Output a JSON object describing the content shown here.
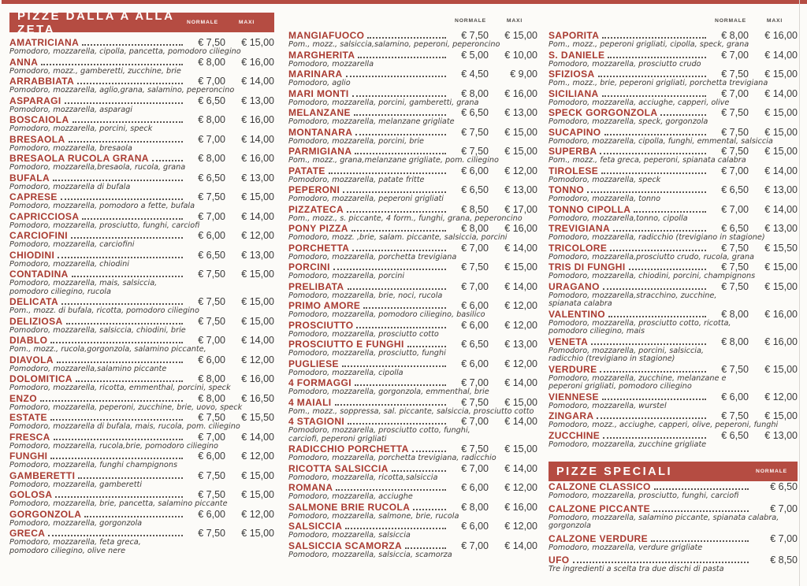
{
  "colors": {
    "banner_red": "#b54c42",
    "name_red": "#a83a30"
  },
  "price_headers": {
    "normale": "NORMALE",
    "maxi": "MAXI"
  },
  "sections": {
    "az": {
      "title": "PIZZE DALLA A ALLA ZETA"
    },
    "speciali": {
      "title": "PIZZE SPECIALI",
      "items": [
        {
          "name": "CALZONE CLASSICO",
          "desc": "Pomodoro, mozzarella, prosciutto, funghi, carciofi",
          "normale": "€ 6,50"
        },
        {
          "name": "CALZONE PICCANTE",
          "desc": "Pomodoro, mozzarella, salamino piccante, spianata calabra, gorgonzola",
          "normale": "€ 7,00"
        },
        {
          "name": "CALZONE VERDURE",
          "desc": "Pomodoro, mozzarella, verdure grigliate",
          "normale": "€ 7,00"
        },
        {
          "name": "UFO",
          "desc": "Tre ingredienti a scelta tra due dischi di pasta",
          "normale": "€ 8,50"
        }
      ]
    }
  },
  "columns": [
    [
      {
        "name": "AMATRICIANA",
        "desc": "Pomodoro, mozzarella, cipolla, pancetta, pomodoro ciliegino",
        "normale": "€ 7,50",
        "maxi": "€ 15,00"
      },
      {
        "name": "ANNA",
        "desc": "Pomodoro, mozz., gamberetti, zucchine, brie",
        "normale": "€ 8,00",
        "maxi": "€ 16,00"
      },
      {
        "name": "ARRABBIATA",
        "desc": "Pomodoro, mozzarella, aglio,grana, salamino, peperoncino",
        "normale": "€ 7,00",
        "maxi": "€ 14,00"
      },
      {
        "name": "ASPARAGI",
        "desc": "Pomodoro, mozzarella, asparagi",
        "normale": "€ 6,50",
        "maxi": "€ 13,00"
      },
      {
        "name": "BOSCAIOLA",
        "desc": "Pomodoro, mozzarella, porcini, speck",
        "normale": "€ 8,00",
        "maxi": "€ 16,00"
      },
      {
        "name": "BRESAOLA",
        "desc": "Pomodoro, mozzarella, bresaola",
        "normale": "€ 7,00",
        "maxi": "€ 14,00"
      },
      {
        "name": "BRESAOLA RUCOLA GRANA",
        "desc": "Pomodoro, mozzarella,bresaola, rucola, grana",
        "normale": "€ 8,00",
        "maxi": "€ 16,00"
      },
      {
        "name": "BUFALA",
        "desc": "Pomodoro, mozzarella di bufala",
        "normale": "€ 6,50",
        "maxi": "€ 13,00"
      },
      {
        "name": "CAPRESE",
        "desc": "Pomodoro, mozzarella, pomodoro a fette, bufala",
        "normale": "€ 7,50",
        "maxi": "€ 15,00"
      },
      {
        "name": "CAPRICCIOSA",
        "desc": "Pomodoro, mozzarella, prosciutto, funghi, carciofi",
        "normale": "€ 7,00",
        "maxi": "€ 14,00"
      },
      {
        "name": "CARCIOFINI",
        "desc": "Pomodoro, mozzarella, carciofini",
        "normale": "€ 6,00",
        "maxi": "€ 12,00"
      },
      {
        "name": "CHIODINI",
        "desc": "Pomodoro, mozzarella, chiodini",
        "normale": "€ 6,50",
        "maxi": "€ 13,00"
      },
      {
        "name": "CONTADINA",
        "desc": "Pomodoro, mozzarella, mais, salsiccia,\npomodoro ciliegino, rucola",
        "normale": "€ 7,50",
        "maxi": "€ 15,00"
      },
      {
        "name": "DELICATA",
        "desc": "Pom., mozz. di bufala, ricotta, pomodoro ciliegino",
        "normale": "€ 7,50",
        "maxi": "€ 15,00"
      },
      {
        "name": "DELIZIOSA",
        "desc": "Pomodoro, mozzarella, salsiccia, chiodini, brie",
        "normale": "€ 7,50",
        "maxi": "€ 15,00"
      },
      {
        "name": "DIABLO",
        "desc": "Pom., mozz., rucola,gorgonzola, salamino piccante,",
        "normale": "€ 7,00",
        "maxi": "€ 14,00"
      },
      {
        "name": "DIAVOLA",
        "desc": "Pomodoro, mozzarella,salamino piccante",
        "normale": "€ 6,00",
        "maxi": "€ 12,00"
      },
      {
        "name": "DOLOMITICA",
        "desc": "Pomodoro, mozzarella, ricotta, emmenthal, porcini, speck",
        "normale": "€ 8,00",
        "maxi": "€ 16,00"
      },
      {
        "name": "ENZO",
        "desc": "Pomodoro, mozzarella, peperoni, zucchine, brie, uovo, speck",
        "normale": "€ 8,00",
        "maxi": "€ 16,50"
      },
      {
        "name": "ESTATE",
        "desc": "Pomodoro, mozzarella di bufala, mais, rucola, pom. ciliegino",
        "normale": "€ 7,50",
        "maxi": "€ 15,50"
      },
      {
        "name": "FRESCA",
        "desc": "Pomodoro, mozzarella, rucola,brie, pomodoro ciliegino",
        "normale": "€ 7,00",
        "maxi": "€ 14,00"
      },
      {
        "name": "FUNGHI",
        "desc": "Pomodoro, mozzarella, funghi champignons",
        "normale": "€ 6,00",
        "maxi": "€ 12,00"
      },
      {
        "name": "GAMBERETTI",
        "desc": "Pomodoro, mozzarella, gamberetti",
        "normale": "€ 7,50",
        "maxi": "€ 15,00"
      },
      {
        "name": "GOLOSA",
        "desc": "Pomodoro, mozzarella, brie, pancetta, salamino piccante",
        "normale": "€ 7,50",
        "maxi": "€ 15,00"
      },
      {
        "name": "GORGONZOLA",
        "desc": "Pomodoro, mozzarella, gorgonzola",
        "normale": "€ 6,00",
        "maxi": "€ 12,00"
      },
      {
        "name": "GRECA",
        "desc": "Pomodoro, mozzarella, feta greca,\npomodoro ciliegino, olive nere",
        "normale": "€ 7,50",
        "maxi": "€ 15,00"
      }
    ],
    [
      {
        "name": "MANGIAFUOCO",
        "desc": "Pom., mozz., salsiccia,salamino, peperoni, peperoncino",
        "normale": "€ 7,50",
        "maxi": "€ 15,00"
      },
      {
        "name": "MARGHERITA",
        "desc": "Pomodoro, mozzarella",
        "normale": "€ 5,00",
        "maxi": "€ 10,00"
      },
      {
        "name": "MARINARA",
        "desc": "Pomodoro, aglio",
        "normale": "€ 4,50",
        "maxi": "€ 9,00"
      },
      {
        "name": "MARI MONTI",
        "desc": "Pomodoro, mozzarella, porcini, gamberetti, grana",
        "normale": "€ 8,00",
        "maxi": "€ 16,00"
      },
      {
        "name": "MELANZANE",
        "desc": "Pomodoro, mozzarella, melanzane grigliate",
        "normale": "€ 6,50",
        "maxi": "€ 13,00"
      },
      {
        "name": "MONTANARA",
        "desc": "Pomodoro, mozzarella, porcini, brie",
        "normale": "€ 7,50",
        "maxi": "€ 15,00"
      },
      {
        "name": "PARMIGIANA",
        "desc": "Pom., mozz., grana,melanzane grigliate, pom. ciliegino",
        "normale": "€ 7,50",
        "maxi": "€ 15,00"
      },
      {
        "name": "PATATE",
        "desc": "Pomodoro, mozzarella, patate fritte",
        "normale": "€ 6,00",
        "maxi": "€ 12,00"
      },
      {
        "name": "PEPERONI",
        "desc": "Pomodoro, mozzarella, peperoni grigliati",
        "normale": "€ 6,50",
        "maxi": "€ 13,00"
      },
      {
        "name": "PIZZATECA",
        "desc": "Pom., mozz., s. piccante, 4 form., funghi, grana, peperoncino",
        "normale": "€ 8,50",
        "maxi": "€ 17,00"
      },
      {
        "name": "PONY PIZZA",
        "desc": "Pomodoro, mozz. ,brie, salam. piccante, salsiccia, porcini",
        "normale": "€ 8,00",
        "maxi": "€ 16,00"
      },
      {
        "name": "PORCHETTA",
        "desc": "Pomodoro, mozzarella, porchetta trevigiana",
        "normale": "€ 7,00",
        "maxi": "€ 14,00"
      },
      {
        "name": "PORCINI",
        "desc": "Pomodoro, mozzarella, porcini",
        "normale": "€ 7,50",
        "maxi": "€ 15,00"
      },
      {
        "name": "PRELIBATA",
        "desc": "Pomodoro, mozzarella, brie, noci, rucola",
        "normale": "€ 7,00",
        "maxi": "€ 14,00"
      },
      {
        "name": "PRIMO AMORE",
        "desc": "Pomodoro, mozzarella, pomodoro ciliegino, basilico",
        "normale": "€ 6,00",
        "maxi": "€ 12,00"
      },
      {
        "name": "PROSCIUTTO",
        "desc": "Pomodoro, mozzarella, prosciutto cotto",
        "normale": "€ 6,00",
        "maxi": "€ 12,00"
      },
      {
        "name": "PROSCIUTTO E FUNGHI",
        "desc": "Pomodoro, mozzarella, prosciutto, funghi",
        "normale": "€ 6,50",
        "maxi": "€ 13,00"
      },
      {
        "name": "PUGLIESE",
        "desc": "Pomodoro, mozzarella, cipolla",
        "normale": "€ 6,00",
        "maxi": "€ 12,00"
      },
      {
        "name": "4 FORMAGGI",
        "desc": "Pomodoro, mozzarella, gorgonzola, emmenthal, brie",
        "normale": "€ 7,00",
        "maxi": "€ 14,00"
      },
      {
        "name": "4 MAIALI",
        "desc": "Pom., mozz., soppressa, sal. piccante, salsiccia, prosciutto cotto",
        "normale": "€ 7,50",
        "maxi": "€ 15,00"
      },
      {
        "name": "4 STAGIONI",
        "desc": "Pomodoro, mozzarella, prosciutto cotto, funghi,\ncarciofi, peperoni grigliati",
        "normale": "€ 7,00",
        "maxi": "€ 14,00"
      },
      {
        "name": "RADICCHIO PORCHETTA",
        "desc": "Pomodoro, mozzarella, porchetta trevigiana, radicchio",
        "normale": "€ 7,50",
        "maxi": "€ 15,00"
      },
      {
        "name": "RICOTTA SALSICCIA",
        "desc": "Pomodoro, mozzarella, ricotta,salsiccia",
        "normale": "€ 7,00",
        "maxi": "€ 14,00"
      },
      {
        "name": "ROMANA",
        "desc": "Pomodoro, mozzarella, acciughe",
        "normale": "€ 6,00",
        "maxi": "€ 12,00"
      },
      {
        "name": "SALMONE BRIE RUCOLA",
        "desc": "Pomodoro, mozzarella, salmone, brie, rucola",
        "normale": "€ 8,00",
        "maxi": "€ 16,00"
      },
      {
        "name": "SALSICCIA",
        "desc": "Pomodoro, mozzarella, salsiccia",
        "normale": "€ 6,00",
        "maxi": "€ 12,00"
      },
      {
        "name": "SALSICCIA SCAMORZA",
        "desc": "Pomodoro, mozzarella, salsiccia, scamorza",
        "normale": "€ 7,00",
        "maxi": "€ 14,00"
      }
    ],
    [
      {
        "name": "SAPORITA",
        "desc": "Pom., mozz., peperoni grigliati, cipolla, speck, grana",
        "normale": "€ 8,00",
        "maxi": "€ 16,00"
      },
      {
        "name": "S. DANIELE",
        "desc": "Pomodoro, mozzarella, prosciutto crudo",
        "normale": "€ 7,00",
        "maxi": "€ 14,00"
      },
      {
        "name": "SFIZIOSA",
        "desc": "Pom., mozz., brie, peperoni grigliati, porchetta trevigiana",
        "normale": "€ 7,50",
        "maxi": "€ 15,00"
      },
      {
        "name": "SICILIANA",
        "desc": "Pomodoro, mozzarella, acciughe, capperi, olive",
        "normale": "€ 7,00",
        "maxi": "€ 14,00"
      },
      {
        "name": "SPECK GORGONZOLA",
        "desc": "Pomodoro, mozzarella, speck, gorgonzola",
        "normale": "€ 7,50",
        "maxi": "€ 15,00"
      },
      {
        "name": "SUCAPINO",
        "desc": "Pomodoro, mozzarella, cipolla, funghi, emmental, salsiccia",
        "normale": "€ 7,50",
        "maxi": "€ 15,00"
      },
      {
        "name": "SUPERBA",
        "desc": "Pom., mozz., feta greca, peperoni, spianata calabra",
        "normale": "€ 7,50",
        "maxi": "€ 15,00"
      },
      {
        "name": "TIROLESE",
        "desc": "Pomodoro, mozzarella, speck",
        "normale": "€ 7,00",
        "maxi": "€ 14,00"
      },
      {
        "name": "TONNO",
        "desc": "Pomodoro, mozzarella, tonno",
        "normale": "€ 6,50",
        "maxi": "€ 13,00"
      },
      {
        "name": "TONNO CIPOLLA",
        "desc": "Pomodoro, mozzarella,tonno, cipolla",
        "normale": "€ 7,00",
        "maxi": "€ 14,00"
      },
      {
        "name": "TREVIGIANA",
        "desc": "Pomodoro, mozzarella, radicchio (trevigiano in stagione)",
        "normale": "€ 6,50",
        "maxi": "€ 13,00"
      },
      {
        "name": "TRICOLORE",
        "desc": "Pomodoro, mozzarella,prosciutto crudo, rucola, grana",
        "normale": "€ 7,50",
        "maxi": "€ 15,50"
      },
      {
        "name": "TRIS DI FUNGHI",
        "desc": "Pomodoro, mozzarella, chiodini, porcini, champignons",
        "normale": "€ 7,50",
        "maxi": "€ 15,00"
      },
      {
        "name": "URAGANO",
        "desc": "Pomodoro, mozzarella,stracchino, zucchine,\nspianata calabra",
        "normale": "€ 7,50",
        "maxi": "€ 15,00"
      },
      {
        "name": "VALENTINO",
        "desc": "Pomodoro, mozzarella, prosciutto cotto, ricotta,\npomodoro ciliegino, mais",
        "normale": "€ 8,00",
        "maxi": "€ 16,00"
      },
      {
        "name": "VENETA",
        "desc": "Pomodoro, mozzarella, porcini, salsiccia,\nradicchio (trevigiano in stagione)",
        "normale": "€ 8,00",
        "maxi": "€ 16,00"
      },
      {
        "name": "VERDURE",
        "desc": "Pomodoro, mozzarella, zucchine, melanzane e\npeperoni grigliati, pomodoro ciliegino",
        "normale": "€ 7,50",
        "maxi": "€ 15,00"
      },
      {
        "name": "VIENNESE",
        "desc": "Pomodoro, mozzarella, wurstel",
        "normale": "€ 6,00",
        "maxi": "€ 12,00"
      },
      {
        "name": "ZINGARA",
        "desc": "Pomodoro, mozz., acciughe, capperi, olive, peperoni, funghi",
        "normale": "€ 7,50",
        "maxi": "€ 15,00"
      },
      {
        "name": "ZUCCHINE",
        "desc": "Pomodoro, mozzarella, zucchine grigliate",
        "normale": "€ 6,50",
        "maxi": "€ 13,00"
      }
    ]
  ]
}
